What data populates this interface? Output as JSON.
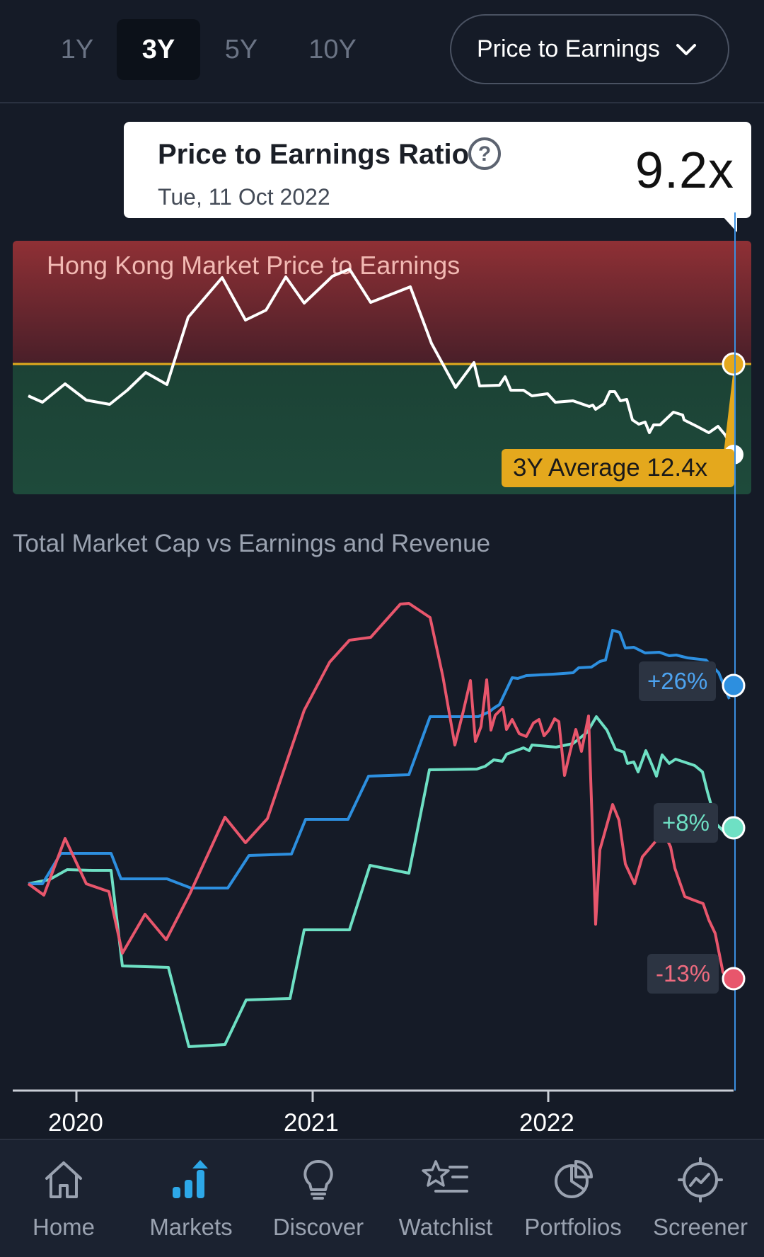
{
  "periods": [
    "1Y",
    "3Y",
    "5Y",
    "10Y"
  ],
  "active_period": "3Y",
  "metric_select": {
    "label": "Price to Earnings"
  },
  "tooltip": {
    "title": "Price to Earnings Ratio",
    "date": "Tue, 11 Oct 2022",
    "value": "9.2x"
  },
  "pe_panel": {
    "title": "Hong Kong Market Price to Earnings",
    "average_label": "3Y Average 12.4x"
  },
  "growth": {
    "title": "Total Market Cap vs Earnings and Revenue",
    "badges": {
      "revenue": "+26%",
      "earnings": "+8%",
      "market_cap": "-13%"
    },
    "years": [
      "2020",
      "2021",
      "2022"
    ]
  },
  "colors": {
    "market_cap": "#e8566c",
    "revenue": "#2d8fdf",
    "earnings": "#6ee0c4",
    "average": "#e4a81d",
    "bg": "#151b27"
  },
  "nav": [
    {
      "label": "Home",
      "icon": "home-icon"
    },
    {
      "label": "Markets",
      "icon": "markets-icon"
    },
    {
      "label": "Discover",
      "icon": "lightbulb-icon"
    },
    {
      "label": "Watchlist",
      "icon": "watchlist-icon"
    },
    {
      "label": "Portfolios",
      "icon": "pie-chart-icon"
    },
    {
      "label": "Screener",
      "icon": "screener-icon"
    }
  ]
}
